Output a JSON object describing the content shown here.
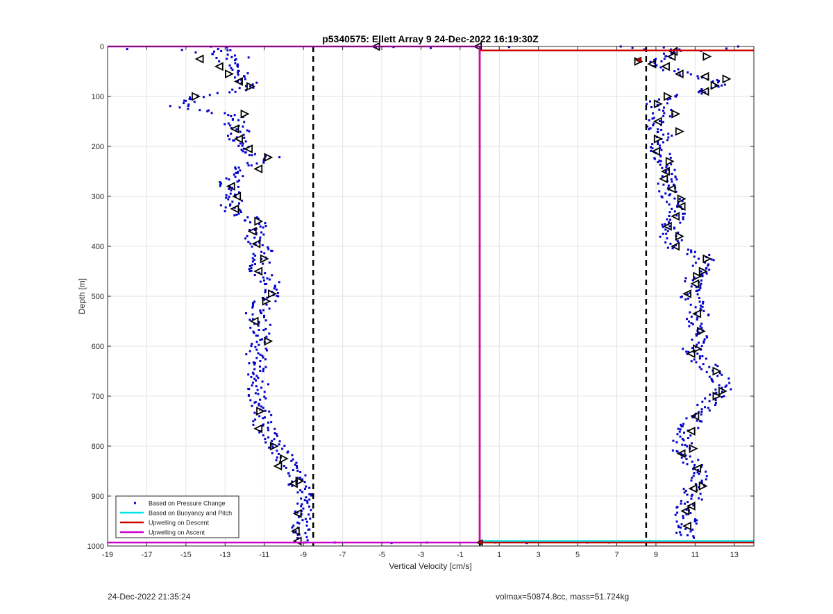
{
  "footer": {
    "timestamp": "24-Dec-2022 21:35:24",
    "vol_mass": "volmax=50874.8cc, mass=51.724kg"
  },
  "chart_data": {
    "type": "scatter",
    "title": "p5340575: Ellett Array 9 24-Dec-2022 16:19:30Z",
    "xlabel": "Vertical Velocity [cm/s]",
    "ylabel": "Depth [m]",
    "xlim": [
      -19,
      14
    ],
    "ylim": [
      0,
      1000
    ],
    "y_reversed": true,
    "grid": true,
    "x_ticks": [
      -19,
      -17,
      -15,
      -13,
      -11,
      -9,
      -7,
      -5,
      -3,
      -1,
      1,
      3,
      5,
      7,
      9,
      11,
      13
    ],
    "y_ticks": [
      0,
      100,
      200,
      300,
      400,
      500,
      600,
      700,
      800,
      900,
      1000
    ],
    "legend_position": "bottom-left",
    "legend": [
      {
        "label": "Based on Pressure Change",
        "kind": "marker",
        "color": "#0000cc"
      },
      {
        "label": "Based on Buoyancy and Pitch",
        "kind": "line",
        "color": "#00e5e5"
      },
      {
        "label": "Upwelling on Descent",
        "kind": "line",
        "color": "#cc0000"
      },
      {
        "label": "Upwelling on Ascent",
        "kind": "line",
        "color": "#cc00cc"
      }
    ],
    "reference_lines": [
      {
        "type": "vertical",
        "x": -8.5,
        "style": "dashed",
        "color": "#000000"
      },
      {
        "type": "vertical",
        "x": 8.5,
        "style": "dashed",
        "color": "#000000"
      },
      {
        "type": "vertical",
        "x": 0,
        "style": "solid",
        "color": "#000000"
      }
    ],
    "upwelling_ascent": {
      "color": "#cc00cc",
      "points": [
        [
          -19,
          0
        ],
        [
          0,
          0
        ],
        [
          0,
          993
        ],
        [
          -19,
          993
        ]
      ]
    },
    "upwelling_descent": {
      "color": "#cc0000",
      "points": [
        [
          0,
          8
        ],
        [
          14,
          8
        ],
        [
          0,
          8
        ],
        [
          0,
          993
        ],
        [
          14,
          993
        ]
      ]
    },
    "buoyancy_pitch": {
      "color": "#00e5e5",
      "points": [
        [
          0,
          990
        ],
        [
          14,
          990
        ]
      ]
    },
    "pressure_change": {
      "color": "#0000cc",
      "surface_scatter": [
        [
          -18,
          5
        ],
        [
          -15.2,
          7
        ],
        [
          -14.5,
          12
        ],
        [
          -13.2,
          9
        ],
        [
          -12.5,
          18
        ],
        [
          -11.8,
          22
        ],
        [
          -5.3,
          2
        ],
        [
          -4.4,
          1
        ],
        [
          -2.5,
          3
        ],
        [
          1.5,
          1
        ],
        [
          7.2,
          0
        ],
        [
          7.8,
          3
        ],
        [
          8.4,
          6
        ],
        [
          9.4,
          2
        ],
        [
          10.2,
          6
        ],
        [
          11.3,
          9
        ],
        [
          12.6,
          4
        ],
        [
          13.2,
          0
        ]
      ],
      "bottom_scatter": [
        [
          -8.9,
          993
        ],
        [
          -7.4,
          993
        ],
        [
          -4.5,
          994
        ],
        [
          -2.7,
          993
        ],
        [
          0.8,
          993
        ],
        [
          2.4,
          994
        ],
        [
          5.5,
          993
        ],
        [
          6.6,
          993
        ],
        [
          7.9,
          992
        ],
        [
          8.7,
          990
        ]
      ],
      "descent_profile": [
        [
          0,
          -13.5
        ],
        [
          20,
          -13.0
        ],
        [
          35,
          -12.7
        ],
        [
          50,
          -12.3
        ],
        [
          65,
          -12.0
        ],
        [
          80,
          -11.6
        ],
        [
          90,
          -12.4
        ],
        [
          100,
          -14.3
        ],
        [
          110,
          -15.0
        ],
        [
          120,
          -15.5
        ],
        [
          130,
          -14.0
        ],
        [
          140,
          -12.2
        ],
        [
          155,
          -12.6
        ],
        [
          170,
          -12.3
        ],
        [
          185,
          -12.4
        ],
        [
          200,
          -12.0
        ],
        [
          215,
          -11.4
        ],
        [
          225,
          -10.6
        ],
        [
          235,
          -11.7
        ],
        [
          250,
          -12.4
        ],
        [
          265,
          -12.8
        ],
        [
          280,
          -12.7
        ],
        [
          300,
          -12.5
        ],
        [
          315,
          -12.8
        ],
        [
          330,
          -12.5
        ],
        [
          345,
          -11.6
        ],
        [
          360,
          -11.4
        ],
        [
          375,
          -11.6
        ],
        [
          390,
          -11.4
        ],
        [
          410,
          -11.1
        ],
        [
          430,
          -11.1
        ],
        [
          450,
          -11.3
        ],
        [
          470,
          -10.8
        ],
        [
          490,
          -10.5
        ],
        [
          505,
          -10.8
        ],
        [
          520,
          -11.2
        ],
        [
          540,
          -11.5
        ],
        [
          560,
          -11.2
        ],
        [
          580,
          -11.1
        ],
        [
          600,
          -11.3
        ],
        [
          620,
          -11.4
        ],
        [
          640,
          -11.4
        ],
        [
          660,
          -11.3
        ],
        [
          680,
          -11.3
        ],
        [
          700,
          -11.3
        ],
        [
          720,
          -11.1
        ],
        [
          740,
          -11.1
        ],
        [
          760,
          -11.0
        ],
        [
          780,
          -10.7
        ],
        [
          800,
          -10.4
        ],
        [
          815,
          -10.1
        ],
        [
          830,
          -9.9
        ],
        [
          845,
          -9.7
        ],
        [
          860,
          -9.3
        ],
        [
          880,
          -9.2
        ],
        [
          900,
          -9.1
        ],
        [
          920,
          -9.0
        ],
        [
          940,
          -9.2
        ],
        [
          960,
          -9.2
        ],
        [
          975,
          -9.3
        ],
        [
          990,
          -9.2
        ]
      ],
      "ascent_profile": [
        [
          5,
          9.9
        ],
        [
          20,
          9.7
        ],
        [
          30,
          9.2
        ],
        [
          45,
          9.6
        ],
        [
          55,
          10.4
        ],
        [
          65,
          11.5
        ],
        [
          75,
          12.3
        ],
        [
          85,
          11.6
        ],
        [
          95,
          10.8
        ],
        [
          105,
          9.6
        ],
        [
          115,
          9.0
        ],
        [
          130,
          9.4
        ],
        [
          145,
          9.2
        ],
        [
          160,
          8.9
        ],
        [
          175,
          9.5
        ],
        [
          190,
          9.2
        ],
        [
          205,
          9.0
        ],
        [
          220,
          9.3
        ],
        [
          235,
          9.5
        ],
        [
          250,
          9.6
        ],
        [
          265,
          9.5
        ],
        [
          280,
          9.6
        ],
        [
          295,
          9.8
        ],
        [
          310,
          9.8
        ],
        [
          325,
          10.1
        ],
        [
          340,
          9.9
        ],
        [
          355,
          9.7
        ],
        [
          370,
          9.6
        ],
        [
          385,
          9.8
        ],
        [
          400,
          9.9
        ],
        [
          420,
          11.5
        ],
        [
          440,
          11.4
        ],
        [
          460,
          11.0
        ],
        [
          480,
          11.0
        ],
        [
          495,
          10.7
        ],
        [
          510,
          10.9
        ],
        [
          530,
          11.2
        ],
        [
          550,
          11.1
        ],
        [
          570,
          11.2
        ],
        [
          590,
          11.0
        ],
        [
          610,
          10.8
        ],
        [
          630,
          11.3
        ],
        [
          650,
          12.0
        ],
        [
          670,
          12.3
        ],
        [
          690,
          12.3
        ],
        [
          710,
          11.8
        ],
        [
          730,
          11.3
        ],
        [
          750,
          10.9
        ],
        [
          770,
          10.6
        ],
        [
          790,
          10.4
        ],
        [
          810,
          10.3
        ],
        [
          830,
          10.9
        ],
        [
          850,
          11.1
        ],
        [
          870,
          11.2
        ],
        [
          890,
          10.9
        ],
        [
          910,
          10.8
        ],
        [
          930,
          10.5
        ],
        [
          950,
          10.6
        ],
        [
          970,
          10.5
        ],
        [
          985,
          10.4
        ]
      ],
      "descent_triangles": [
        [
          -14.3,
          25,
          "l"
        ],
        [
          -13.3,
          40,
          "l"
        ],
        [
          -12.8,
          55,
          "r"
        ],
        [
          -12.3,
          70,
          "l"
        ],
        [
          -11.7,
          80,
          "r"
        ],
        [
          -14.5,
          100,
          "r"
        ],
        [
          -12.0,
          135,
          "r"
        ],
        [
          -12.5,
          165,
          "l"
        ],
        [
          -12.3,
          185,
          "l"
        ],
        [
          -11.8,
          205,
          "l"
        ],
        [
          -10.8,
          222,
          "r"
        ],
        [
          -11.3,
          245,
          "l"
        ],
        [
          -12.7,
          280,
          "l"
        ],
        [
          -12.4,
          300,
          "l"
        ],
        [
          -12.5,
          325,
          "l"
        ],
        [
          -11.3,
          350,
          "r"
        ],
        [
          -11.6,
          370,
          "l"
        ],
        [
          -11.4,
          395,
          "l"
        ],
        [
          -11.0,
          425,
          "r"
        ],
        [
          -11.3,
          450,
          "l"
        ],
        [
          -10.6,
          495,
          "r"
        ],
        [
          -10.9,
          510,
          "r"
        ],
        [
          -11.5,
          550,
          "l"
        ],
        [
          -10.8,
          590,
          "r"
        ],
        [
          -11.2,
          730,
          "r"
        ],
        [
          -11.3,
          765,
          "l"
        ],
        [
          -10.5,
          800,
          "r"
        ],
        [
          -10.0,
          825,
          "r"
        ],
        [
          -10.3,
          840,
          "l"
        ],
        [
          -9.5,
          875,
          "l"
        ],
        [
          -9.2,
          870,
          "r"
        ],
        [
          -9.3,
          935,
          "l"
        ],
        [
          -9.4,
          970,
          "l"
        ],
        [
          -9.3,
          990,
          "l"
        ],
        [
          -5.3,
          0,
          "l"
        ],
        [
          -0.1,
          0,
          "l"
        ]
      ],
      "ascent_triangles": [
        [
          9.9,
          10,
          "l"
        ],
        [
          9.8,
          20,
          "l"
        ],
        [
          8.8,
          35,
          "l"
        ],
        [
          9.5,
          40,
          "l"
        ],
        [
          10.2,
          55,
          "l"
        ],
        [
          11.6,
          20,
          "r"
        ],
        [
          11.5,
          60,
          "l"
        ],
        [
          12.6,
          65,
          "r"
        ],
        [
          12.0,
          78,
          "r"
        ],
        [
          11.5,
          90,
          "l"
        ],
        [
          9.6,
          100,
          "r"
        ],
        [
          9.1,
          115,
          "r"
        ],
        [
          10.0,
          135,
          "r"
        ],
        [
          9.1,
          150,
          "l"
        ],
        [
          10.2,
          170,
          "r"
        ],
        [
          9.1,
          185,
          "r"
        ],
        [
          9.0,
          210,
          "l"
        ],
        [
          9.7,
          230,
          "r"
        ],
        [
          9.5,
          250,
          "l"
        ],
        [
          9.4,
          265,
          "l"
        ],
        [
          9.8,
          285,
          "l"
        ],
        [
          10.3,
          305,
          "r"
        ],
        [
          10.3,
          320,
          "l"
        ],
        [
          10.0,
          340,
          "l"
        ],
        [
          9.6,
          360,
          "l"
        ],
        [
          10.2,
          380,
          "r"
        ],
        [
          10.0,
          400,
          "l"
        ],
        [
          11.6,
          425,
          "r"
        ],
        [
          11.4,
          450,
          "r"
        ],
        [
          11.1,
          460,
          "r"
        ],
        [
          11.0,
          475,
          "l"
        ],
        [
          10.6,
          495,
          "l"
        ],
        [
          11.1,
          535,
          "l"
        ],
        [
          11.3,
          570,
          "r"
        ],
        [
          11.1,
          605,
          "r"
        ],
        [
          10.8,
          615,
          "l"
        ],
        [
          12.1,
          650,
          "r"
        ],
        [
          12.4,
          690,
          "r"
        ],
        [
          12.1,
          700,
          "r"
        ],
        [
          11.0,
          740,
          "l"
        ],
        [
          10.8,
          770,
          "l"
        ],
        [
          10.9,
          805,
          "r"
        ],
        [
          10.3,
          815,
          "l"
        ],
        [
          11.1,
          845,
          "l"
        ],
        [
          11.4,
          880,
          "r"
        ],
        [
          10.9,
          885,
          "l"
        ],
        [
          10.8,
          920,
          "l"
        ],
        [
          10.5,
          930,
          "l"
        ],
        [
          10.6,
          960,
          "l"
        ],
        [
          8.1,
          30,
          "r"
        ]
      ],
      "red_markers": [
        [
          8.1,
          27
        ],
        [
          0.0,
          993
        ]
      ]
    }
  }
}
